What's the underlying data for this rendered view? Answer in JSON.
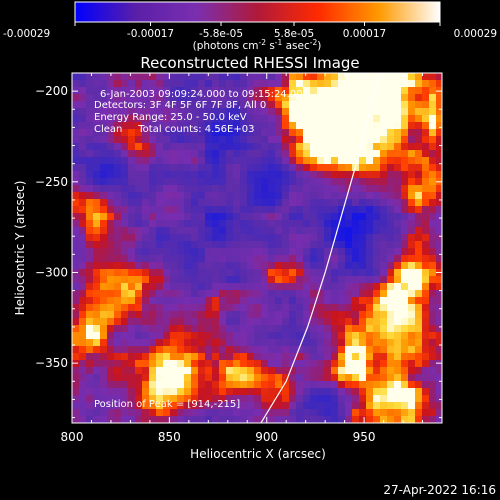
{
  "footer": {
    "date": "27-Apr-2022 16:16"
  },
  "colorbar": {
    "ticks": [
      "-0.00029",
      "-0.00017",
      "-5.8e-05",
      "5.8e-05",
      "0.00017",
      "0.00029"
    ],
    "tick_values": [
      -0.00029,
      -0.00017,
      -5.8e-05,
      5.8e-05,
      0.00017,
      0.00029
    ],
    "range": [
      -0.00029,
      0.00029
    ],
    "unit_base": "(photons cm",
    "unit_sup1": "-2",
    "unit_mid": " s",
    "unit_sup2": "-1",
    "unit_end": " asec",
    "unit_sup3": "-2",
    "unit_close": ")",
    "colors": [
      "#0000ff",
      "#5a1fa8",
      "#7a2fb0",
      "#b01a3a",
      "#ff2a00",
      "#ff9a00",
      "#ffffff"
    ]
  },
  "chart_data": {
    "type": "heatmap",
    "title": "Reconstructed RHESSI Image",
    "xlabel": "Heliocentric X (arcsec)",
    "ylabel": "Heliocentric Y (arcsec)",
    "xlim": [
      800,
      990
    ],
    "ylim": [
      -383,
      -190
    ],
    "x_ticks": [
      800,
      850,
      900,
      950
    ],
    "y_ticks": [
      -200,
      -250,
      -300,
      -350
    ],
    "x_tick_labels": [
      "800",
      "850",
      "900",
      "950"
    ],
    "y_tick_labels": [
      "-200",
      "-250",
      "-300",
      "-350"
    ],
    "annotations": [
      "6-Jan-2003 09:09:24.000 to 09:15:24.000",
      "Detectors: 3F 4F 5F 6F 7F 8F, All 0",
      "Energy Range: 25.0 - 50.0 keV",
      "Clean     Total counts: 4.56E+03",
      "Position of Peak = [914,-215]"
    ],
    "peak": [
      914,
      -215
    ],
    "limb_curve": [
      [
        897,
        -383
      ],
      [
        910,
        -360
      ],
      [
        921,
        -330
      ],
      [
        930,
        -300
      ],
      [
        938,
        -270
      ],
      [
        946,
        -240
      ],
      [
        953,
        -210
      ],
      [
        958,
        -190
      ]
    ],
    "blobs": [
      {
        "x": 945,
        "y": -212,
        "r": 22,
        "v": 1.0
      },
      {
        "x": 962,
        "y": -196,
        "r": 14,
        "v": 0.9
      },
      {
        "x": 918,
        "y": -208,
        "r": 12,
        "v": 0.7
      },
      {
        "x": 935,
        "y": -232,
        "r": 12,
        "v": 0.75
      },
      {
        "x": 845,
        "y": -368,
        "r": 12,
        "v": 0.95
      },
      {
        "x": 852,
        "y": -350,
        "r": 9,
        "v": 0.8
      },
      {
        "x": 820,
        "y": -310,
        "r": 14,
        "v": 0.75
      },
      {
        "x": 808,
        "y": -335,
        "r": 11,
        "v": 0.7
      },
      {
        "x": 885,
        "y": -355,
        "r": 10,
        "v": 0.8
      },
      {
        "x": 905,
        "y": -370,
        "r": 9,
        "v": 0.7
      },
      {
        "x": 960,
        "y": -330,
        "r": 18,
        "v": 0.85
      },
      {
        "x": 975,
        "y": -300,
        "r": 14,
        "v": 0.75
      },
      {
        "x": 965,
        "y": -375,
        "r": 16,
        "v": 0.9
      },
      {
        "x": 980,
        "y": -250,
        "r": 12,
        "v": 0.7
      },
      {
        "x": 832,
        "y": -230,
        "r": 8,
        "v": 0.65
      },
      {
        "x": 810,
        "y": -268,
        "r": 10,
        "v": 0.65
      },
      {
        "x": 870,
        "y": -320,
        "r": 7,
        "v": 0.55
      },
      {
        "x": 905,
        "y": -300,
        "r": 7,
        "v": 0.55
      },
      {
        "x": 940,
        "y": -350,
        "r": 8,
        "v": 0.65
      },
      {
        "x": 985,
        "y": -215,
        "r": 8,
        "v": 0.6
      }
    ],
    "lows": [
      {
        "x": 880,
        "y": -220,
        "r": 14,
        "v": -0.6
      },
      {
        "x": 820,
        "y": -245,
        "r": 10,
        "v": -0.55
      },
      {
        "x": 900,
        "y": -250,
        "r": 12,
        "v": -0.5
      },
      {
        "x": 945,
        "y": -270,
        "r": 14,
        "v": -0.7
      },
      {
        "x": 950,
        "y": -295,
        "r": 10,
        "v": -0.6
      },
      {
        "x": 925,
        "y": -372,
        "r": 10,
        "v": -0.7
      },
      {
        "x": 850,
        "y": -280,
        "r": 12,
        "v": -0.45
      },
      {
        "x": 880,
        "y": -270,
        "r": 10,
        "v": -0.5
      },
      {
        "x": 860,
        "y": -200,
        "r": 8,
        "v": -0.45
      }
    ]
  }
}
